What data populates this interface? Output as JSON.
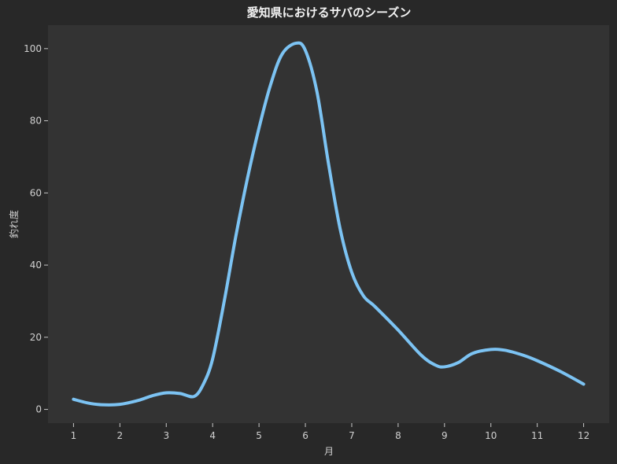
{
  "chart_data": {
    "type": "line",
    "title": "愛知県におけるサバのシーズン",
    "xlabel": "月",
    "ylabel": "釣れ度",
    "x": [
      1,
      2,
      3,
      4,
      5,
      6,
      7,
      8,
      9,
      10,
      11,
      12
    ],
    "x_tick_labels": [
      "1",
      "2",
      "3",
      "4",
      "5",
      "6",
      "7",
      "8",
      "9",
      "10",
      "11",
      "12"
    ],
    "xlim": [
      0.45,
      12.55
    ],
    "y_ticks": [
      0,
      20,
      40,
      60,
      80,
      100
    ],
    "y_tick_labels": [
      "0",
      "20",
      "40",
      "60",
      "80",
      "100"
    ],
    "ylim": [
      -3.8,
      106.5
    ],
    "grid": false,
    "series": [
      {
        "color": "#7cc3f3",
        "points": [
          [
            1.0,
            2.8
          ],
          [
            1.3,
            1.8
          ],
          [
            1.6,
            1.3
          ],
          [
            2.0,
            1.4
          ],
          [
            2.4,
            2.5
          ],
          [
            2.7,
            3.8
          ],
          [
            3.0,
            4.6
          ],
          [
            3.3,
            4.4
          ],
          [
            3.6,
            3.6
          ],
          [
            3.8,
            7.0
          ],
          [
            4.0,
            14.0
          ],
          [
            4.25,
            30.0
          ],
          [
            4.5,
            48.0
          ],
          [
            4.75,
            64.0
          ],
          [
            5.0,
            78.0
          ],
          [
            5.25,
            90.0
          ],
          [
            5.5,
            98.5
          ],
          [
            5.8,
            101.5
          ],
          [
            6.0,
            99.5
          ],
          [
            6.25,
            88.0
          ],
          [
            6.5,
            68.0
          ],
          [
            6.75,
            50.0
          ],
          [
            7.0,
            38.0
          ],
          [
            7.25,
            31.5
          ],
          [
            7.5,
            28.5
          ],
          [
            8.0,
            22.0
          ],
          [
            8.5,
            15.0
          ],
          [
            8.8,
            12.3
          ],
          [
            9.0,
            11.8
          ],
          [
            9.3,
            13.0
          ],
          [
            9.6,
            15.5
          ],
          [
            10.0,
            16.6
          ],
          [
            10.3,
            16.4
          ],
          [
            10.7,
            15.0
          ],
          [
            11.0,
            13.5
          ],
          [
            11.5,
            10.5
          ],
          [
            12.0,
            7.0
          ]
        ]
      }
    ]
  }
}
